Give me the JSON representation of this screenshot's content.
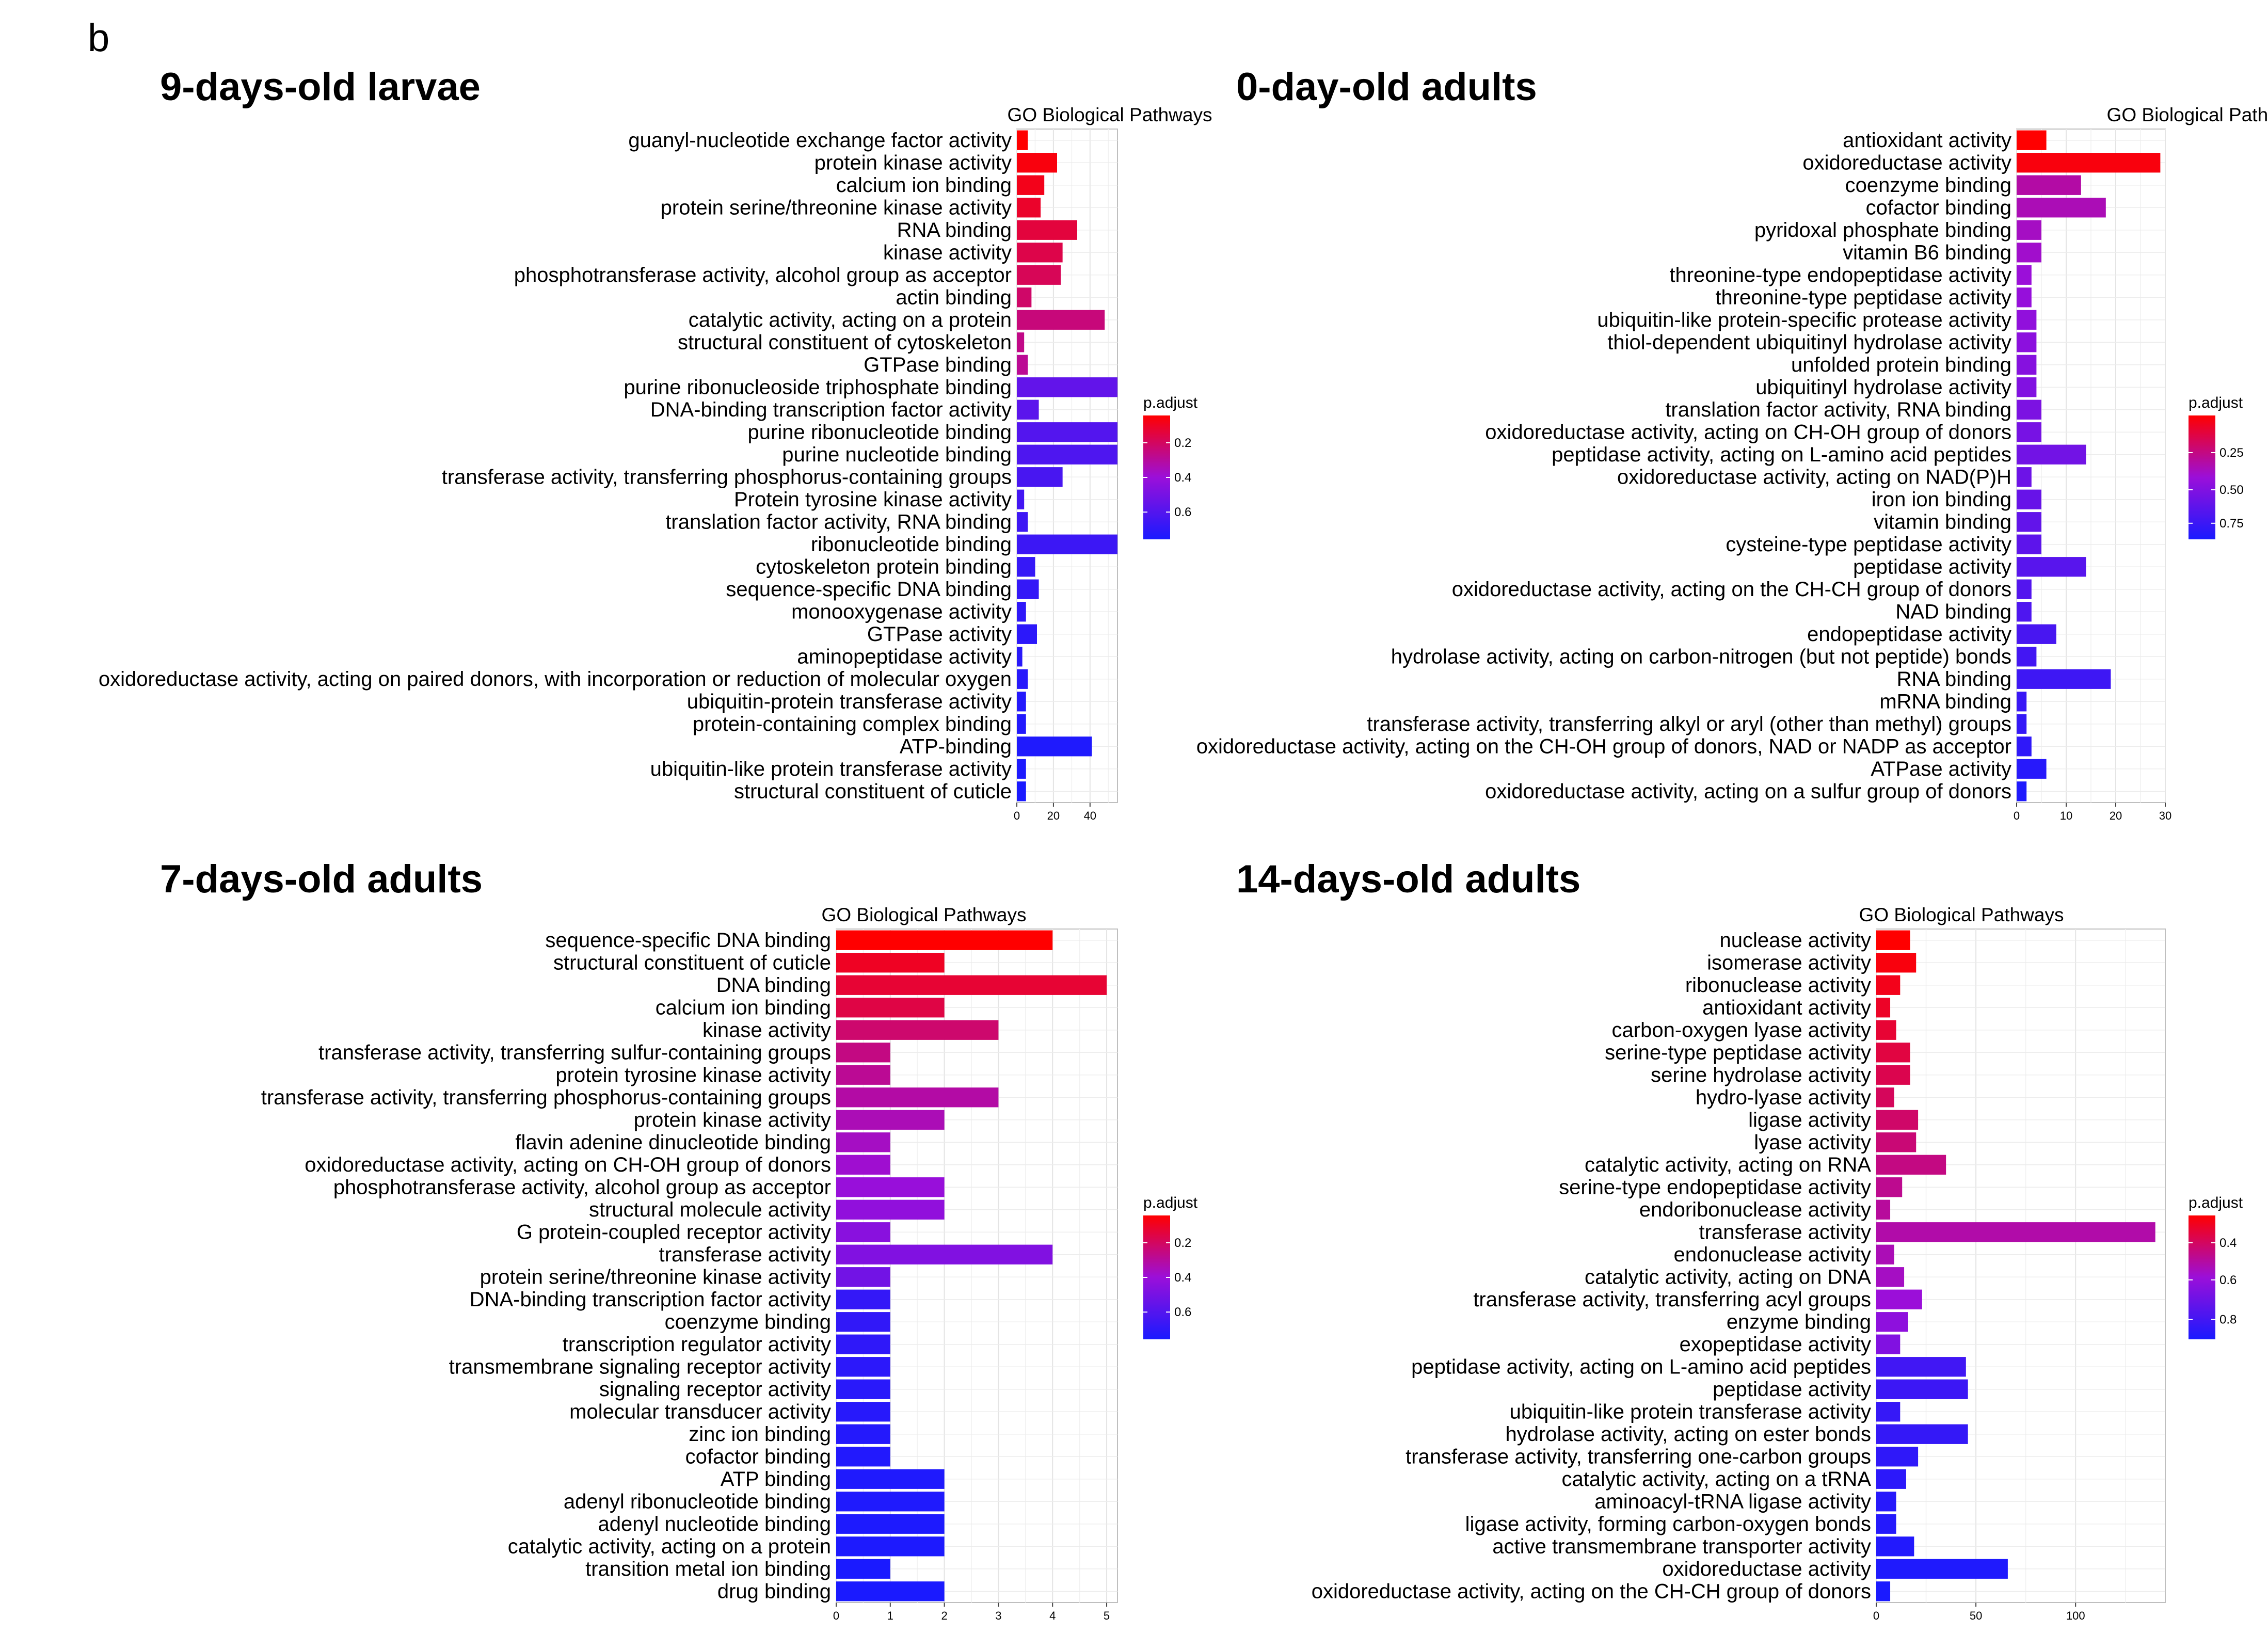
{
  "figure_letter": "b",
  "chart_data": [
    {
      "type": "bar",
      "panel_title": "9-days-old larvae",
      "title": "GO Biological Pathways",
      "orientation": "horizontal",
      "xlabel": "",
      "ylabel": "",
      "xlim": [
        0,
        55
      ],
      "x_ticks": [
        0,
        20,
        40
      ],
      "grid": true,
      "legend_title": "p.adjust",
      "legend_ticks": [
        "0.2",
        "0.4",
        "0.6"
      ],
      "color_low": "#ff0000",
      "color_high": "#1a1aff",
      "categories": [
        "guanyl-nucleotide exchange factor activity",
        "protein kinase activity",
        "calcium ion binding",
        "protein serine/threonine kinase activity",
        "RNA binding",
        "kinase activity",
        "phosphotransferase activity, alcohol group as acceptor",
        "actin binding",
        "catalytic activity, acting on a protein",
        "structural constituent of cytoskeleton",
        "GTPase binding",
        "purine ribonucleoside triphosphate binding",
        "DNA-binding transcription factor activity",
        "purine ribonucleotide binding",
        "purine nucleotide binding",
        "transferase activity, transferring phosphorus-containing groups",
        "Protein tyrosine kinase activity",
        "translation factor activity, RNA binding",
        "ribonucleotide binding",
        "cytoskeleton protein binding",
        "sequence-specific DNA binding",
        "monooxygenase activity",
        "GTPase activity",
        "aminopeptidase activity",
        "oxidoreductase activity, acting on paired donors, with incorporation or reduction of molecular oxygen",
        "ubiquitin-protein transferase activity",
        "protein-containing complex binding",
        "ATP-binding",
        "ubiquitin-like protein transferase activity",
        "structural constituent of cuticle"
      ],
      "values": [
        6,
        22,
        15,
        13,
        33,
        25,
        24,
        8,
        48,
        4,
        6,
        55,
        12,
        55,
        55,
        25,
        4,
        6,
        55,
        10,
        12,
        5,
        11,
        3,
        6,
        5,
        5,
        41,
        5,
        5
      ],
      "color_scale": [
        0.0,
        0.03,
        0.06,
        0.1,
        0.14,
        0.17,
        0.2,
        0.24,
        0.28,
        0.31,
        0.34,
        0.72,
        0.75,
        0.78,
        0.8,
        0.82,
        0.84,
        0.86,
        0.87,
        0.89,
        0.9,
        0.92,
        0.93,
        0.94,
        0.95,
        0.96,
        0.97,
        0.98,
        0.99,
        1.0
      ]
    },
    {
      "type": "bar",
      "panel_title": "0-day-old adults",
      "title": "GO Biological Pathways",
      "orientation": "horizontal",
      "xlabel": "",
      "ylabel": "",
      "xlim": [
        0,
        30
      ],
      "x_ticks": [
        0,
        10,
        20,
        30
      ],
      "grid": true,
      "legend_title": "p.adjust",
      "legend_ticks": [
        "0.25",
        "0.50",
        "0.75"
      ],
      "color_low": "#ff0000",
      "color_high": "#1a1aff",
      "categories": [
        "antioxidant activity",
        "oxidoreductase activity",
        "coenzyme binding",
        "cofactor binding",
        "pyridoxal phosphate binding",
        "vitamin B6 binding",
        "threonine-type endopeptidase activity",
        "threonine-type peptidase activity",
        "ubiquitin-like protein-specific protease activity",
        "thiol-dependent ubiquitinyl hydrolase activity",
        "unfolded protein binding",
        "ubiquitinyl hydrolase activity",
        "translation factor activity, RNA binding",
        "oxidoreductase activity, acting on CH-OH group of donors",
        "peptidase activity, acting on L-amino acid peptides",
        "oxidoreductase activity, acting on NAD(P)H",
        "iron ion binding",
        "vitamin binding",
        "cysteine-type peptidase activity",
        "peptidase activity",
        "oxidoreductase activity, acting on the CH-CH group of donors",
        "NAD binding",
        "endopeptidase activity",
        "hydrolase activity, acting on carbon-nitrogen (but not peptide) bonds",
        "RNA binding",
        "mRNA binding",
        "transferase activity, transferring alkyl or aryl (other than methyl) groups",
        "oxidoreductase activity, acting on the CH-OH group of donors, NAD or NADP as acceptor",
        "ATPase activity",
        "oxidoreductase activity, acting on a sulfur group of donors"
      ],
      "values": [
        6,
        29,
        13,
        18,
        5,
        5,
        3,
        3,
        4,
        4,
        4,
        4,
        5,
        5,
        14,
        3,
        5,
        5,
        5,
        14,
        3,
        3,
        8,
        4,
        19,
        2,
        2,
        3,
        6,
        2
      ],
      "color_scale": [
        0.0,
        0.03,
        0.38,
        0.42,
        0.45,
        0.47,
        0.5,
        0.52,
        0.54,
        0.56,
        0.58,
        0.6,
        0.62,
        0.64,
        0.66,
        0.68,
        0.7,
        0.72,
        0.74,
        0.76,
        0.78,
        0.8,
        0.82,
        0.84,
        0.86,
        0.88,
        0.9,
        0.92,
        0.95,
        0.98
      ]
    },
    {
      "type": "bar",
      "panel_title": "7-days-old adults",
      "title": "GO Biological Pathways",
      "orientation": "horizontal",
      "xlabel": "",
      "ylabel": "",
      "xlim": [
        0,
        5.2
      ],
      "x_ticks": [
        0,
        1,
        2,
        3,
        4,
        5
      ],
      "grid": true,
      "legend_title": "p.adjust",
      "legend_ticks": [
        "0.2",
        "0.4",
        "0.6"
      ],
      "color_low": "#ff0000",
      "color_high": "#1a1aff",
      "categories": [
        "sequence-specific DNA binding",
        "structural constituent of cuticle",
        "DNA binding",
        "calcium ion binding",
        "kinase activity",
        "transferase activity, transferring sulfur-containing groups",
        "protein tyrosine kinase activity",
        "transferase activity, transferring phosphorus-containing groups",
        "protein kinase activity",
        "flavin adenine dinucleotide binding",
        "oxidoreductase activity, acting on CH-OH group of donors",
        "phosphotransferase activity, alcohol group as acceptor",
        "structural molecule activity",
        "G protein-coupled receptor activity",
        "transferase activity",
        "protein serine/threonine kinase activity",
        "DNA-binding transcription factor activity",
        "coenzyme binding",
        "transcription regulator activity",
        "transmembrane signaling receptor activity",
        "signaling receptor activity",
        "molecular transducer activity",
        "zinc ion binding",
        "cofactor binding",
        "ATP binding",
        "adenyl ribonucleotide binding",
        "adenyl nucleotide binding",
        "catalytic activity, acting on a protein",
        "transition metal ion binding",
        "drug binding"
      ],
      "values": [
        4,
        2,
        5,
        2,
        3,
        1,
        1,
        3,
        2,
        1,
        1,
        2,
        2,
        1,
        4,
        1,
        1,
        1,
        1,
        1,
        1,
        1,
        1,
        1,
        2,
        2,
        2,
        2,
        1,
        2
      ],
      "color_scale": [
        0.0,
        0.08,
        0.12,
        0.16,
        0.25,
        0.3,
        0.34,
        0.38,
        0.42,
        0.45,
        0.48,
        0.51,
        0.54,
        0.57,
        0.6,
        0.66,
        0.9,
        0.91,
        0.92,
        0.93,
        0.94,
        0.95,
        0.96,
        0.97,
        0.98,
        0.98,
        0.99,
        0.99,
        1.0,
        1.0
      ]
    },
    {
      "type": "bar",
      "panel_title": "14-days-old adults",
      "title": "GO Biological Pathways",
      "orientation": "horizontal",
      "xlabel": "",
      "ylabel": "",
      "xlim": [
        0,
        145
      ],
      "x_ticks": [
        0,
        50,
        100
      ],
      "grid": true,
      "legend_title": "p.adjust",
      "legend_ticks": [
        "0.4",
        "0.6",
        "0.8"
      ],
      "color_low": "#ff0000",
      "color_high": "#1a1aff",
      "categories": [
        "nuclease activity",
        "isomerase activity",
        "ribonuclease activity",
        "antioxidant activity",
        "carbon-oxygen lyase activity",
        "serine-type peptidase activity",
        "serine hydrolase activity",
        "hydro-lyase activity",
        "ligase activity",
        "lyase activity",
        "catalytic activity, acting on RNA",
        "serine-type endopeptidase activity",
        "endoribonuclease activity",
        "transferase activity",
        "endonuclease activity",
        "catalytic activity, acting on DNA",
        "transferase activity, transferring acyl groups",
        "enzyme binding",
        "exopeptidase activity",
        "peptidase activity, acting on L-amino acid peptides",
        "peptidase activity",
        "ubiquitin-like protein transferase activity",
        "hydrolase activity, acting on ester bonds",
        "transferase activity, transferring one-carbon groups",
        "catalytic activity, acting on a tRNA",
        "aminoacyl-tRNA ligase activity",
        "ligase activity, forming carbon-oxygen bonds",
        "active transmembrane transporter activity",
        "oxidoreductase activity",
        "oxidoreductase activity, acting on the CH-CH group of donors"
      ],
      "values": [
        17,
        20,
        12,
        7,
        10,
        17,
        17,
        9,
        21,
        20,
        35,
        13,
        7,
        140,
        9,
        14,
        23,
        16,
        12,
        45,
        46,
        12,
        46,
        21,
        15,
        10,
        10,
        19,
        66,
        7
      ],
      "color_scale": [
        0.0,
        0.03,
        0.06,
        0.09,
        0.12,
        0.15,
        0.18,
        0.21,
        0.24,
        0.27,
        0.3,
        0.33,
        0.36,
        0.39,
        0.42,
        0.45,
        0.5,
        0.55,
        0.6,
        0.85,
        0.87,
        0.89,
        0.9,
        0.92,
        0.93,
        0.95,
        0.96,
        0.97,
        0.98,
        1.0
      ]
    }
  ]
}
